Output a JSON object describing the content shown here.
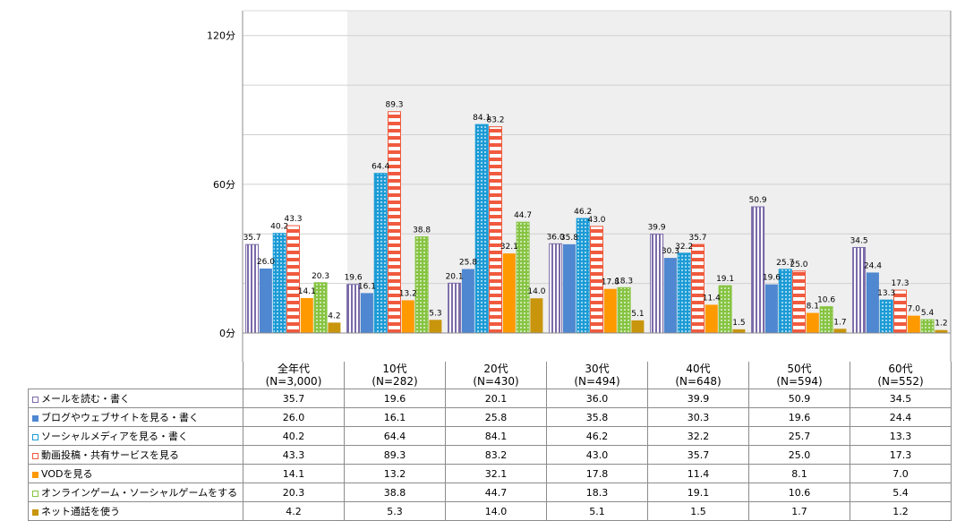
{
  "chart_data": {
    "type": "bar",
    "y_unit": "分",
    "ylim": [
      0,
      130
    ],
    "yticks": [
      {
        "value": 0,
        "label": "0分"
      },
      {
        "value": 60,
        "label": "60分"
      },
      {
        "value": 120,
        "label": "120分"
      }
    ],
    "grid": true,
    "legend": "table-left",
    "categories": [
      {
        "name": "全年代",
        "n": "(N=3,000)"
      },
      {
        "name": "10代",
        "n": "(N=282)"
      },
      {
        "name": "20代",
        "n": "(N=430)"
      },
      {
        "name": "30代",
        "n": "(N=494)"
      },
      {
        "name": "40代",
        "n": "(N=648)"
      },
      {
        "name": "50代",
        "n": "(N=594)"
      },
      {
        "name": "60代",
        "n": "(N=552)"
      }
    ],
    "series": [
      {
        "name": "メールを読む・書く",
        "values": [
          "35.7",
          "19.6",
          "20.1",
          "36.0",
          "39.9",
          "50.9",
          "34.5"
        ],
        "color": "#7b6aa8",
        "pattern": "vstripe"
      },
      {
        "name": "ブログやウェブサイトを見る・書く",
        "values": [
          "26.0",
          "16.1",
          "25.8",
          "35.8",
          "30.3",
          "19.6",
          "24.4"
        ],
        "color": "#4f87d0",
        "pattern": "solid"
      },
      {
        "name": "ソーシャルメディアを見る・書く",
        "values": [
          "40.2",
          "64.4",
          "84.1",
          "46.2",
          "32.2",
          "25.7",
          "13.3"
        ],
        "color": "#1b9bd6",
        "pattern": "dots"
      },
      {
        "name": "動画投稿・共有サービスを見る",
        "values": [
          "43.3",
          "89.3",
          "83.2",
          "43.0",
          "35.7",
          "25.0",
          "17.3"
        ],
        "color": "#f05a3e",
        "pattern": "hstripe"
      },
      {
        "name": "VODを見る",
        "values": [
          "14.1",
          "13.2",
          "32.1",
          "17.8",
          "11.4",
          "8.1",
          "7.0"
        ],
        "color": "#ff9900",
        "pattern": "solid"
      },
      {
        "name": "オンラインゲーム・ソーシャルゲームをする",
        "values": [
          "20.3",
          "38.8",
          "44.7",
          "18.3",
          "19.1",
          "10.6",
          "5.4"
        ],
        "color": "#86c441",
        "pattern": "dots"
      },
      {
        "name": "ネット通話を使う",
        "values": [
          "4.2",
          "5.3",
          "14.0",
          "5.1",
          "1.5",
          "1.7",
          "1.2"
        ],
        "color": "#c8950c",
        "pattern": "solid"
      }
    ]
  }
}
